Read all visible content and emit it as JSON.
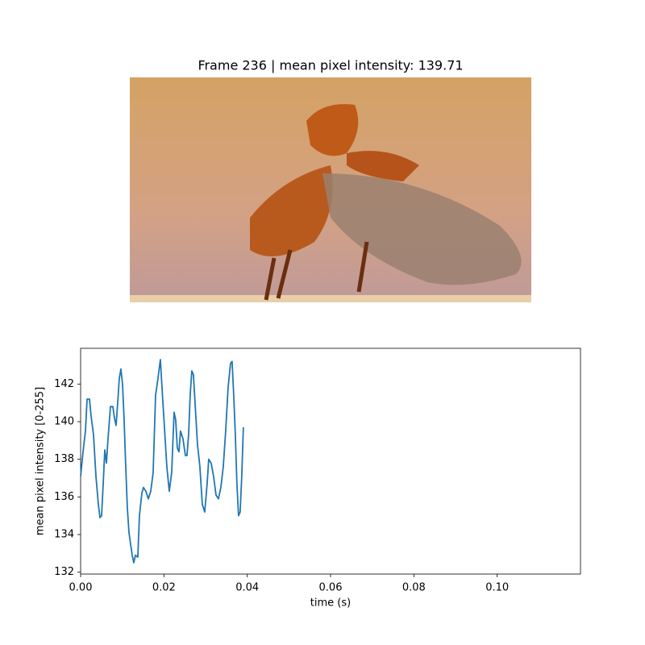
{
  "chart_data": {
    "type": "line",
    "title": "Frame 236 | mean pixel intensity: 139.71",
    "xlabel": "time (s)",
    "ylabel": "mean pixel intensity [0-255]",
    "color": "#1f77b4",
    "xlim": [
      0,
      0.12
    ],
    "ylim": [
      131.9,
      143.9
    ],
    "xticks": [
      {
        "value": 0,
        "label": "0.00"
      },
      {
        "value": 0.02,
        "label": "0.02"
      },
      {
        "value": 0.04,
        "label": "0.04"
      },
      {
        "value": 0.06,
        "label": "0.06"
      },
      {
        "value": 0.08,
        "label": "0.08"
      },
      {
        "value": 0.1,
        "label": "0.10"
      }
    ],
    "yticks": [
      132,
      134,
      136,
      138,
      140,
      142
    ],
    "x": [
      0,
      0.00058,
      0.00116,
      0.00155,
      0.00213,
      0.00251,
      0.00309,
      0.00368,
      0.00426,
      0.00464,
      0.00503,
      0.00542,
      0.0058,
      0.00619,
      0.00658,
      0.00716,
      0.00774,
      0.00812,
      0.00851,
      0.0089,
      0.00928,
      0.00967,
      0.01006,
      0.01044,
      0.01083,
      0.01122,
      0.01161,
      0.01199,
      0.01238,
      0.01277,
      0.01315,
      0.01373,
      0.01412,
      0.0147,
      0.01509,
      0.01567,
      0.01625,
      0.01683,
      0.01741,
      0.01799,
      0.01857,
      0.01915,
      0.01954,
      0.02012,
      0.0207,
      0.02128,
      0.02186,
      0.02244,
      0.02282,
      0.02321,
      0.0236,
      0.02398,
      0.02456,
      0.02515,
      0.02553,
      0.02592,
      0.0263,
      0.02669,
      0.02708,
      0.02747,
      0.02805,
      0.02863,
      0.02921,
      0.02979,
      0.03037,
      0.03075,
      0.03133,
      0.03191,
      0.0325,
      0.03308,
      0.03366,
      0.03424,
      0.03482,
      0.0354,
      0.03598,
      0.03636,
      0.03675,
      0.03714,
      0.03752,
      0.03791,
      0.0383,
      0.03868,
      0.03907
    ],
    "values": [
      137.1,
      138.4,
      139.5,
      141.2,
      141.2,
      140.3,
      139.3,
      137.1,
      135.6,
      134.9,
      135,
      136.7,
      138.5,
      137.8,
      139.1,
      140.8,
      140.8,
      140.2,
      139.8,
      141,
      142.3,
      142.8,
      142,
      140.1,
      137.6,
      135.4,
      134.1,
      133.5,
      132.9,
      132.5,
      132.9,
      132.8,
      135,
      136.2,
      136.5,
      136.3,
      135.9,
      136.3,
      137.3,
      141.4,
      142.3,
      143.3,
      141.8,
      139.7,
      137.6,
      136.3,
      137.3,
      140.5,
      140.1,
      138.6,
      138.4,
      139.5,
      139.1,
      138.2,
      138.2,
      139.3,
      141.4,
      142.7,
      142.5,
      141,
      138.8,
      137.6,
      135.6,
      135.2,
      136.7,
      138,
      137.8,
      137.1,
      136.1,
      135.9,
      136.5,
      137.6,
      139.5,
      141.8,
      143.1,
      143.2,
      141.4,
      139.3,
      136.7,
      135,
      135.2,
      137.1,
      139.7
    ]
  }
}
